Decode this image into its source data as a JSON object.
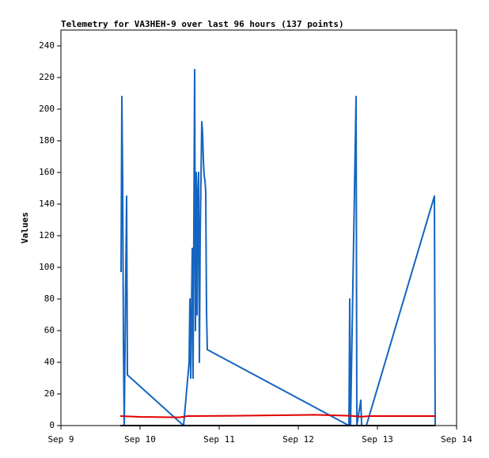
{
  "chart_data": {
    "type": "line",
    "title": "Telemetry for VA3HEH-9 over last 96 hours (137 points)",
    "y_label": "Values",
    "xlim": [
      9,
      14
    ],
    "xticks": [
      {
        "value": 9,
        "label": "Sep 9"
      },
      {
        "value": 10,
        "label": "Sep 10"
      },
      {
        "value": 11,
        "label": "Sep 11"
      },
      {
        "value": 12,
        "label": "Sep 12"
      },
      {
        "value": 13,
        "label": "Sep 13"
      },
      {
        "value": 14,
        "label": "Sep 14"
      }
    ],
    "ylim": [
      0,
      250
    ],
    "yticks": [
      0,
      20,
      40,
      60,
      80,
      100,
      120,
      140,
      160,
      180,
      200,
      220,
      240
    ],
    "series": [
      {
        "color": "#1565c0",
        "x": [
          9.76,
          9.77,
          9.78,
          9.79,
          9.8,
          9.83,
          9.84,
          10.55,
          10.62,
          10.63,
          10.64,
          10.66,
          10.67,
          10.69,
          10.7,
          10.71,
          10.72,
          10.73,
          10.74,
          10.75,
          10.76,
          10.78,
          10.79,
          10.8,
          10.81,
          10.82,
          10.83,
          10.84,
          10.85,
          12.64,
          12.65,
          12.66,
          12.73,
          12.74,
          12.79,
          12.8,
          12.86,
          13.72,
          13.73
        ],
        "values": [
          97,
          208,
          156,
          52,
          0,
          145,
          32,
          0,
          40,
          80,
          30,
          112,
          30,
          225,
          60,
          160,
          70,
          148,
          160,
          40,
          120,
          192,
          185,
          168,
          158,
          155,
          148,
          72,
          48,
          0,
          80,
          0,
          208,
          0,
          16,
          0,
          0,
          145,
          0
        ]
      },
      {
        "color": "#e00000",
        "x": [
          9.75,
          10.0,
          10.5,
          10.6,
          11.2,
          12.2,
          12.65,
          12.8,
          12.9,
          13.73
        ],
        "values": [
          6,
          5.5,
          5.2,
          6,
          6.2,
          6.8,
          6.2,
          5.6,
          6,
          6
        ]
      },
      {
        "color": "#000000",
        "x": [
          9.75,
          13.73
        ],
        "values": [
          0,
          0
        ]
      }
    ]
  }
}
